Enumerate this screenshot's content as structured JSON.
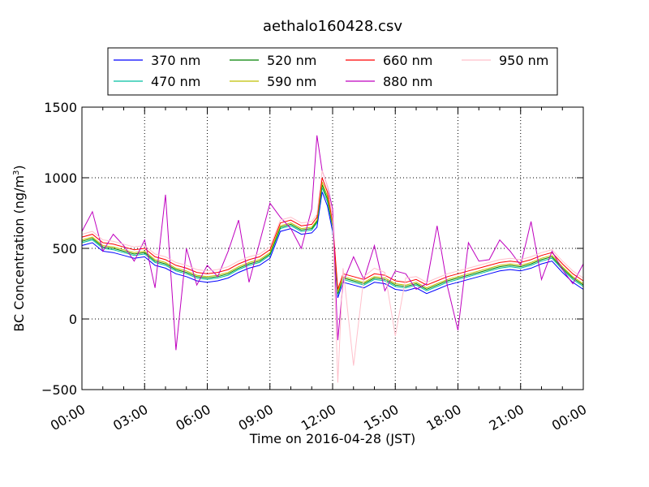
{
  "chart_data": {
    "type": "line",
    "title": "aethalo160428.csv",
    "xlabel": "Time on 2016-04-28 (JST)",
    "ylabel": "BC Concentration (ng/m³)",
    "ylabel_parts": {
      "main": "BC Concentration (ng/m",
      "sup": "3",
      "close": ")"
    },
    "x_unit": "hours",
    "xlim": [
      0,
      24
    ],
    "ylim": [
      -500,
      1500
    ],
    "xticks": [
      {
        "value": 0,
        "label": "00:00"
      },
      {
        "value": 3,
        "label": "03:00"
      },
      {
        "value": 6,
        "label": "06:00"
      },
      {
        "value": 9,
        "label": "09:00"
      },
      {
        "value": 12,
        "label": "12:00"
      },
      {
        "value": 15,
        "label": "15:00"
      },
      {
        "value": 18,
        "label": "18:00"
      },
      {
        "value": 21,
        "label": "21:00"
      },
      {
        "value": 24,
        "label": "00:00"
      }
    ],
    "yticks": [
      {
        "value": -500,
        "label": "−500"
      },
      {
        "value": 0,
        "label": "0"
      },
      {
        "value": 500,
        "label": "500"
      },
      {
        "value": 1000,
        "label": "1000"
      },
      {
        "value": 1500,
        "label": "1500"
      }
    ],
    "grid": true,
    "legend_position": "top",
    "x": [
      0,
      0.5,
      1,
      1.5,
      2,
      2.5,
      3,
      3.5,
      4,
      4.5,
      5,
      5.5,
      6,
      6.5,
      7,
      7.5,
      8,
      8.5,
      9,
      9.5,
      10,
      10.5,
      11,
      11.25,
      11.5,
      11.75,
      12,
      12.25,
      12.5,
      13,
      13.5,
      14,
      14.5,
      15,
      15.5,
      16,
      16.5,
      17,
      17.5,
      18,
      18.5,
      19,
      19.5,
      20,
      20.5,
      21,
      21.5,
      22,
      22.5,
      23,
      23.5,
      24
    ],
    "series": [
      {
        "name": "370 nm",
        "color": "#0000ff",
        "values": [
          520,
          540,
          480,
          470,
          450,
          430,
          440,
          380,
          360,
          320,
          300,
          270,
          260,
          270,
          290,
          330,
          360,
          380,
          430,
          620,
          640,
          600,
          610,
          650,
          900,
          800,
          620,
          150,
          260,
          240,
          220,
          260,
          250,
          210,
          200,
          220,
          180,
          210,
          240,
          260,
          280,
          300,
          320,
          340,
          350,
          340,
          360,
          390,
          410,
          330,
          260,
          210
        ]
      },
      {
        "name": "470 nm",
        "color": "#00bfa0",
        "values": [
          540,
          560,
          500,
          490,
          470,
          450,
          460,
          400,
          380,
          340,
          320,
          290,
          280,
          290,
          310,
          350,
          380,
          400,
          450,
          640,
          660,
          620,
          630,
          680,
          930,
          830,
          650,
          170,
          280,
          260,
          240,
          280,
          270,
          230,
          220,
          240,
          200,
          230,
          260,
          280,
          300,
          320,
          340,
          360,
          370,
          360,
          380,
          410,
          430,
          350,
          280,
          230
        ]
      },
      {
        "name": "520 nm",
        "color": "#008000",
        "values": [
          550,
          570,
          510,
          500,
          480,
          460,
          470,
          410,
          390,
          350,
          330,
          300,
          290,
          300,
          320,
          360,
          390,
          410,
          460,
          650,
          670,
          630,
          640,
          690,
          950,
          850,
          660,
          180,
          290,
          270,
          250,
          290,
          280,
          240,
          230,
          250,
          210,
          240,
          270,
          290,
          310,
          330,
          350,
          370,
          380,
          370,
          390,
          420,
          440,
          360,
          290,
          240
        ]
      },
      {
        "name": "590 nm",
        "color": "#bfbf00",
        "values": [
          560,
          580,
          520,
          510,
          490,
          470,
          480,
          420,
          400,
          360,
          340,
          310,
          300,
          310,
          330,
          370,
          400,
          420,
          470,
          660,
          680,
          640,
          650,
          700,
          970,
          870,
          670,
          190,
          300,
          280,
          260,
          300,
          290,
          250,
          240,
          260,
          220,
          250,
          280,
          300,
          320,
          340,
          360,
          380,
          390,
          380,
          400,
          430,
          450,
          370,
          300,
          250
        ]
      },
      {
        "name": "660 nm",
        "color": "#ff0000",
        "values": [
          580,
          600,
          540,
          530,
          510,
          490,
          500,
          440,
          420,
          380,
          360,
          330,
          320,
          330,
          350,
          390,
          420,
          440,
          490,
          680,
          700,
          660,
          670,
          720,
          1000,
          900,
          690,
          210,
          320,
          300,
          280,
          320,
          310,
          270,
          260,
          280,
          240,
          270,
          300,
          320,
          340,
          360,
          380,
          400,
          410,
          400,
          420,
          450,
          470,
          390,
          320,
          270
        ]
      },
      {
        "name": "880 nm",
        "color": "#bf00bf",
        "values": [
          620,
          760,
          480,
          600,
          520,
          410,
          560,
          220,
          880,
          -220,
          500,
          240,
          380,
          300,
          480,
          700,
          260,
          540,
          820,
          720,
          640,
          500,
          780,
          1300,
          1050,
          940,
          780,
          -150,
          260,
          440,
          280,
          520,
          200,
          340,
          320,
          210,
          250,
          660,
          230,
          -80,
          540,
          410,
          420,
          560,
          480,
          380,
          690,
          280,
          480,
          350,
          250,
          390
        ]
      },
      {
        "name": "950 nm",
        "color": "#ffc0cb",
        "values": [
          600,
          620,
          560,
          550,
          530,
          510,
          520,
          460,
          440,
          400,
          380,
          350,
          340,
          350,
          370,
          410,
          440,
          460,
          510,
          700,
          720,
          680,
          690,
          740,
          1050,
          940,
          710,
          -450,
          360,
          -330,
          300,
          360,
          330,
          -120,
          290,
          300,
          260,
          290,
          320,
          340,
          360,
          380,
          400,
          420,
          430,
          420,
          440,
          470,
          490,
          410,
          340,
          290
        ]
      }
    ]
  }
}
